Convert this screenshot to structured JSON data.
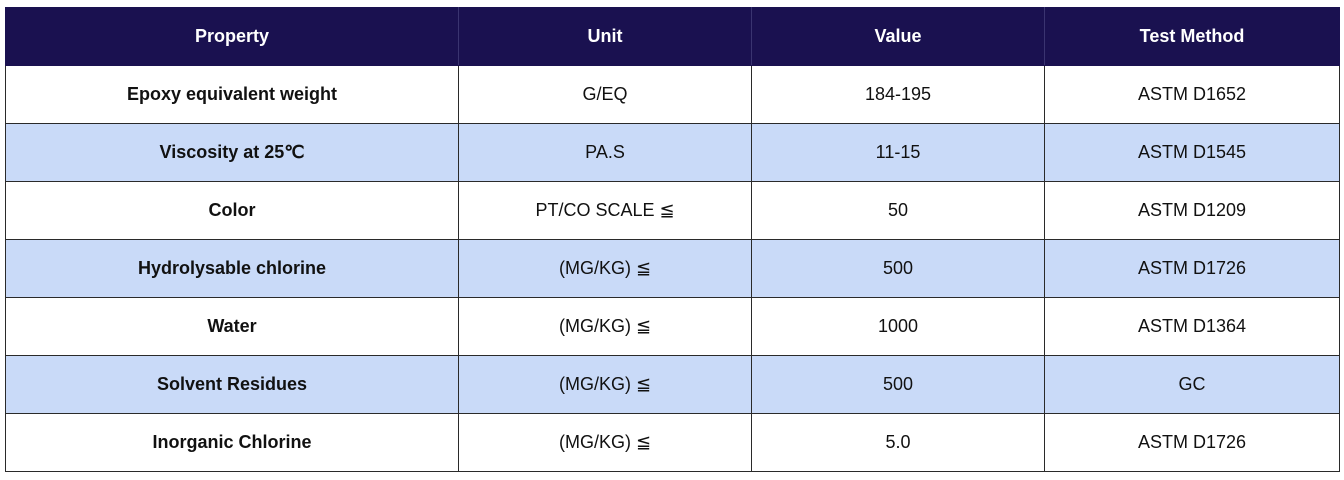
{
  "table": {
    "headers": [
      "Property",
      "Unit",
      "Value",
      "Test Method"
    ],
    "rows": [
      {
        "property": "Epoxy equivalent weight",
        "unit": "G/EQ",
        "value": "184-195",
        "method": "ASTM D1652"
      },
      {
        "property": "Viscosity at 25℃",
        "unit": "PA.S",
        "value": "11-15",
        "method": "ASTM D1545"
      },
      {
        "property": "Color",
        "unit": "PT/CO SCALE ≦",
        "value": "50",
        "method": "ASTM D1209"
      },
      {
        "property": "Hydrolysable chlorine",
        "unit": "(MG/KG) ≦",
        "value": "500",
        "method": "ASTM D1726"
      },
      {
        "property": "Water",
        "unit": "(MG/KG) ≦",
        "value": "1000",
        "method": "ASTM D1364"
      },
      {
        "property": "Solvent Residues",
        "unit": "(MG/KG) ≦",
        "value": "500",
        "method": "GC"
      },
      {
        "property": "Inorganic Chlorine",
        "unit": "(MG/KG) ≦",
        "value": "5.0",
        "method": "ASTM D1726"
      }
    ]
  },
  "colors": {
    "header_bg": "#1a1150",
    "header_text": "#ffffff",
    "alt_row_bg": "#c9daf8",
    "row_bg": "#ffffff",
    "border": "#2a2a2a"
  }
}
